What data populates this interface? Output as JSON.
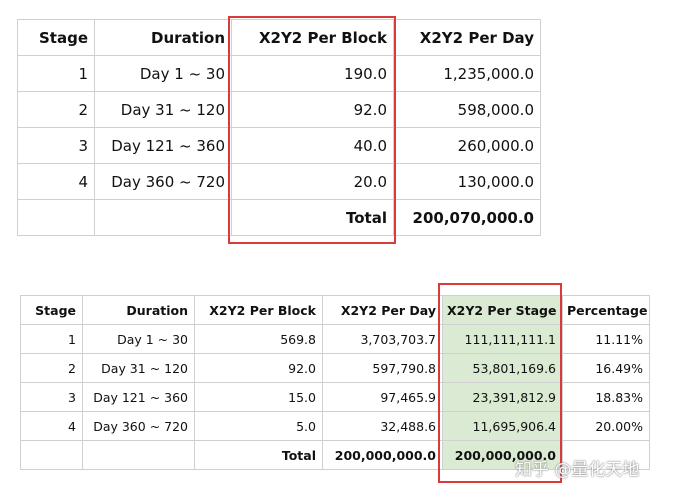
{
  "table1": {
    "headers": [
      "Stage",
      "Duration",
      "X2Y2 Per Block",
      "X2Y2 Per Day"
    ],
    "rows": [
      [
        "1",
        "Day 1 ~ 30",
        "190.0",
        "1,235,000.0"
      ],
      [
        "2",
        "Day 31 ~ 120",
        "92.0",
        "598,000.0"
      ],
      [
        "3",
        "Day 121 ~ 360",
        "40.0",
        "260,000.0"
      ],
      [
        "4",
        "Day 360 ~ 720",
        "20.0",
        "130,000.0"
      ]
    ],
    "total_label": "Total",
    "total_value": "200,070,000.0",
    "highlight_color": "#d93a3a"
  },
  "table2": {
    "headers": [
      "Stage",
      "Duration",
      "X2Y2 Per Block",
      "X2Y2 Per Day",
      "X2Y2 Per Stage",
      "Percentage"
    ],
    "rows": [
      [
        "1",
        "Day 1 ~ 30",
        "569.8",
        "3,703,703.7",
        "111,111,111.1",
        "11.11%"
      ],
      [
        "2",
        "Day 31 ~ 120",
        "92.0",
        "597,790.8",
        "53,801,169.6",
        "16.49%"
      ],
      [
        "3",
        "Day 121 ~ 360",
        "15.0",
        "97,465.9",
        "23,391,812.9",
        "18.83%"
      ],
      [
        "4",
        "Day 360 ~ 720",
        "5.0",
        "32,488.6",
        "11,695,906.4",
        "20.00%"
      ]
    ],
    "total_label": "Total",
    "total_per_day": "200,000,000.0",
    "total_per_stage": "200,000,000.0",
    "highlight_fill": "#dbead2",
    "highlight_color": "#d93a3a"
  },
  "watermark": "知乎 @量化天地"
}
